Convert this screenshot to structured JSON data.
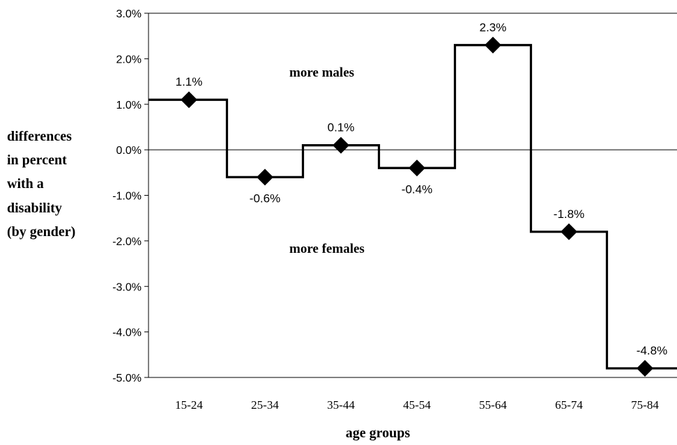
{
  "chart_data": {
    "type": "line",
    "step": true,
    "categories": [
      "15-24",
      "25-34",
      "35-44",
      "45-54",
      "55-64",
      "65-74",
      "75-84"
    ],
    "series": [
      {
        "values": [
          1.1,
          -0.6,
          0.1,
          -0.4,
          2.3,
          -1.8,
          -4.8
        ],
        "data_labels": [
          "1.1%",
          "-0.6%",
          "0.1%",
          "-0.4%",
          "2.3%",
          "-1.8%",
          "-4.8%"
        ]
      }
    ],
    "ylabel_lines": [
      "differences",
      "in percent",
      "with a",
      "disability",
      "(by gender)"
    ],
    "xlabel": "age groups",
    "ylim": [
      -5.0,
      3.0
    ],
    "y_ticks": [
      3.0,
      2.0,
      1.0,
      0.0,
      -1.0,
      -2.0,
      -3.0,
      -4.0,
      -5.0
    ],
    "y_tick_labels": [
      "3.0%",
      "2.0%",
      "1.0%",
      "0.0%",
      "-1.0%",
      "-2.0%",
      "-3.0%",
      "-4.0%",
      "-5.0%"
    ],
    "annotations": {
      "above": "more males",
      "below": "more females"
    },
    "grid": false,
    "legend": "none",
    "marker": "diamond",
    "colors": {
      "line": "#000000",
      "marker": "#000000",
      "axis": "#000000"
    }
  }
}
